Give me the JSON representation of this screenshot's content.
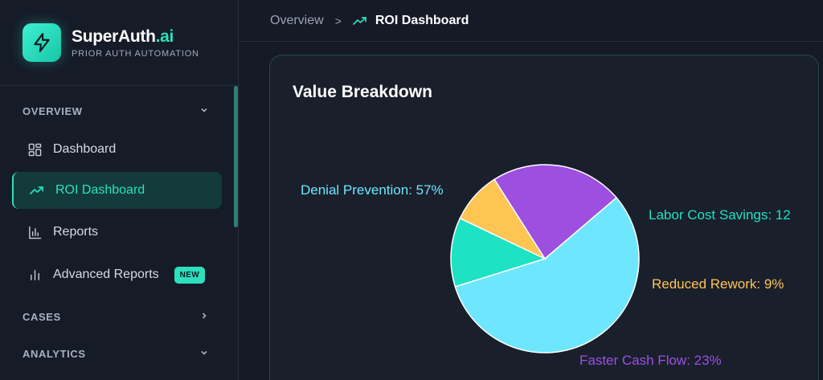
{
  "brand": {
    "name": "SuperAuth",
    "name_accent": ".ai",
    "subtitle": "PRIOR AUTH AUTOMATION",
    "logo_icon": "lightning-icon",
    "accent_color": "#2de0bd"
  },
  "sidebar": {
    "sections": [
      {
        "label": "OVERVIEW",
        "chevron": "chevron-down-icon"
      },
      {
        "label": "CASES",
        "chevron": "chevron-right-icon"
      },
      {
        "label": "ANALYTICS",
        "chevron": "chevron-down-icon"
      }
    ],
    "items": [
      {
        "label": "Dashboard",
        "icon": "grid-icon",
        "active": false
      },
      {
        "label": "ROI Dashboard",
        "icon": "trending-up-icon",
        "active": true
      },
      {
        "label": "Reports",
        "icon": "bar-chart-icon",
        "active": false
      },
      {
        "label": "Advanced Reports",
        "icon": "bar-chart-alt-icon",
        "active": false,
        "badge": "NEW"
      }
    ]
  },
  "breadcrumb": {
    "parent": "Overview",
    "separator": ">",
    "current": "ROI Dashboard",
    "current_icon": "trending-up-icon"
  },
  "card": {
    "title": "Value Breakdown"
  },
  "chart_data": {
    "type": "pie",
    "title": "",
    "slices": [
      {
        "label": "Denial Prevention: 57%",
        "value": 57,
        "color": "#6ee6fd"
      },
      {
        "label": "Labor Cost Savings: 12",
        "value": 12,
        "color": "#1de2c3"
      },
      {
        "label": "Reduced Rework: 9%",
        "value": 9,
        "color": "#fec552"
      },
      {
        "label": "Faster Cash Flow: 23%",
        "value": 23,
        "color": "#9d4fe0"
      }
    ]
  }
}
